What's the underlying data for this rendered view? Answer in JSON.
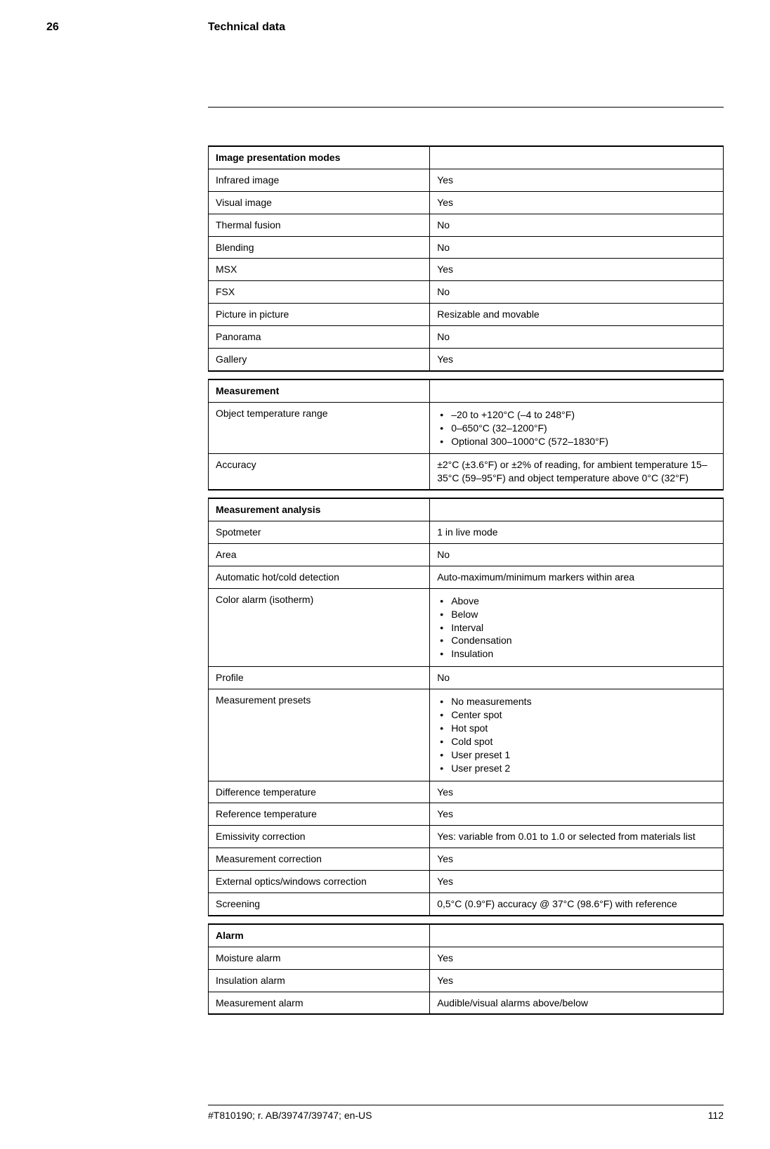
{
  "header": {
    "chapter_number": "26",
    "chapter_title": "Technical data"
  },
  "tables": {
    "image_presentation": {
      "header_label": "Image presentation modes",
      "rows": [
        {
          "label": "Infrared image",
          "value": "Yes"
        },
        {
          "label": "Visual image",
          "value": "Yes"
        },
        {
          "label": "Thermal fusion",
          "value": "No"
        },
        {
          "label": "Blending",
          "value": "No"
        },
        {
          "label": "MSX",
          "value": "Yes"
        },
        {
          "label": "FSX",
          "value": "No"
        },
        {
          "label": "Picture in picture",
          "value": "Resizable and movable"
        },
        {
          "label": "Panorama",
          "value": "No"
        },
        {
          "label": "Gallery",
          "value": "Yes"
        }
      ]
    },
    "measurement": {
      "header_label": "Measurement",
      "rows": [
        {
          "label": "Object temperature range",
          "list": [
            "–20 to +120°C (–4 to 248°F)",
            "0–650°C (32–1200°F)",
            "Optional 300–1000°C (572–1830°F)"
          ]
        },
        {
          "label": "Accuracy",
          "value": "±2°C (±3.6°F) or ±2% of reading, for ambient temperature 15–35°C (59–95°F) and object temperature above 0°C (32°F)"
        }
      ]
    },
    "measurement_analysis": {
      "header_label": "Measurement analysis",
      "rows": [
        {
          "label": "Spotmeter",
          "value": "1 in live mode"
        },
        {
          "label": "Area",
          "value": "No"
        },
        {
          "label": "Automatic hot/cold detection",
          "value": "Auto-maximum/minimum markers within area"
        },
        {
          "label": "Color alarm (isotherm)",
          "list": [
            "Above",
            "Below",
            "Interval",
            "Condensation",
            "Insulation"
          ]
        },
        {
          "label": "Profile",
          "value": "No"
        },
        {
          "label": "Measurement presets",
          "list": [
            "No measurements",
            "Center spot",
            "Hot spot",
            "Cold spot",
            "User preset 1",
            "User preset 2"
          ]
        },
        {
          "label": "Difference temperature",
          "value": "Yes"
        },
        {
          "label": "Reference temperature",
          "value": "Yes"
        },
        {
          "label": "Emissivity correction",
          "value": "Yes: variable from 0.01 to 1.0 or selected from materials list"
        },
        {
          "label": "Measurement correction",
          "value": "Yes"
        },
        {
          "label": "External optics/windows correction",
          "value": "Yes"
        },
        {
          "label": "Screening",
          "value": "0,5°C (0.9°F) accuracy @ 37°C (98.6°F) with reference"
        }
      ]
    },
    "alarm": {
      "header_label": "Alarm",
      "rows": [
        {
          "label": "Moisture alarm",
          "value": "Yes"
        },
        {
          "label": "Insulation alarm",
          "value": "Yes"
        },
        {
          "label": "Measurement alarm",
          "value": "Audible/visual alarms above/below"
        }
      ]
    }
  },
  "footer": {
    "doc_id": "#T810190; r. AB/39747/39747; en-US",
    "page_number": "112"
  }
}
